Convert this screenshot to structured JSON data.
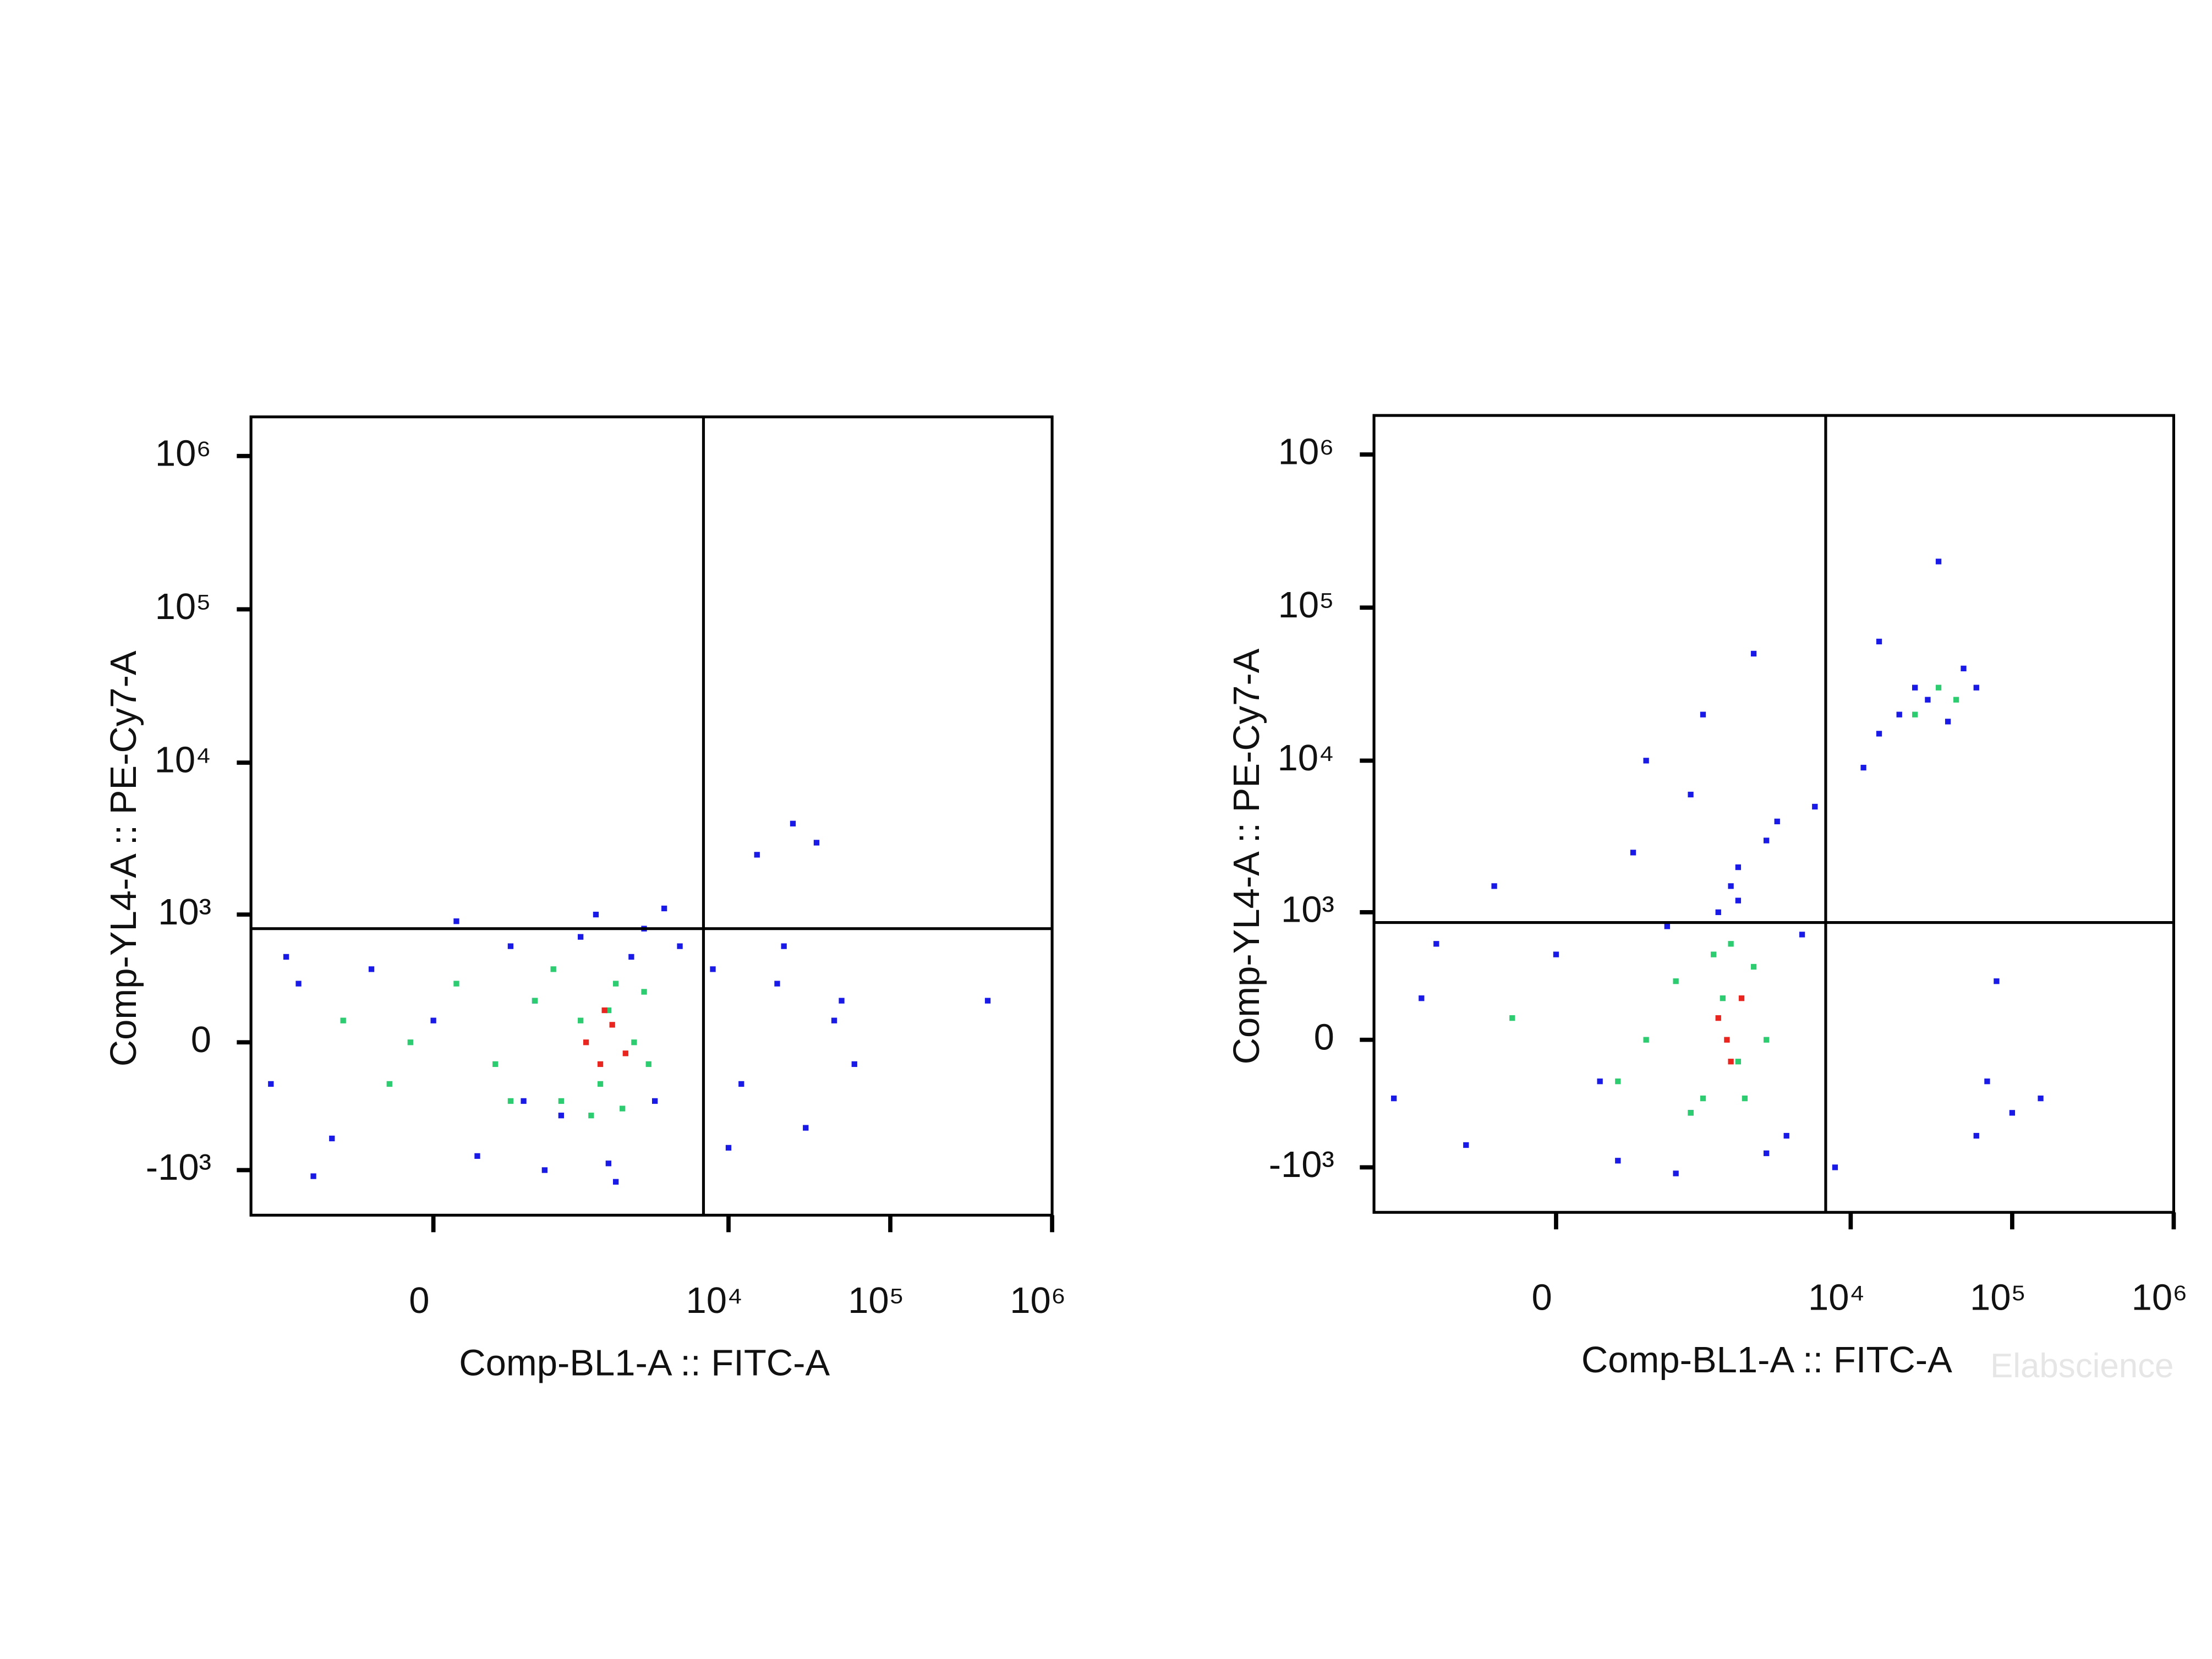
{
  "chart_data": [
    {
      "type": "scatter",
      "scale": "logicle",
      "xlabel": "Comp-BL1-A :: FITC-A",
      "ylabel": "Comp-YL4-A :: PE-Cy7-A",
      "xlim": [
        -2000,
        1000000
      ],
      "ylim": [
        -2000,
        1800000
      ],
      "xticks": [
        0,
        {
          "value": 10000,
          "label": "10⁴"
        },
        {
          "value": 100000,
          "label": "10⁵"
        },
        {
          "value": 1000000,
          "label": "10⁶"
        }
      ],
      "yticks": [
        {
          "value": -1000,
          "label": "-10³"
        },
        0,
        {
          "value": 1000,
          "label": "10³"
        },
        {
          "value": 10000,
          "label": "10⁴"
        },
        {
          "value": 100000,
          "label": "10⁵"
        },
        {
          "value": 1000000,
          "label": "10⁶"
        }
      ],
      "gate": {
        "x": 7000,
        "y": 800
      },
      "series": [
        {
          "color": "#1a1ae6",
          "x": [
            -1500,
            -1000,
            -600,
            -300,
            0,
            200,
            400,
            600,
            900,
            1200,
            1800,
            2500,
            3500,
            5000,
            8000,
            12000,
            20000,
            30000,
            45000,
            60000,
            -800,
            100,
            700,
            1500,
            3000,
            15000,
            25000,
            35000,
            400000,
            -1200,
            500,
            2000,
            4000,
            10000,
            22000,
            50000
          ],
          "values": [
            -200,
            300,
            -600,
            400,
            100,
            -800,
            600,
            200,
            -400,
            700,
            -900,
            500,
            -300,
            600,
            400,
            -200,
            300,
            -500,
            100,
            -100,
            -1100,
            900,
            -1000,
            1000,
            800,
            2500,
            4000,
            3000,
            200,
            500,
            -300,
            -1200,
            1100,
            -700,
            600,
            200
          ]
        },
        {
          "color": "#2ecc71",
          "x": [
            -500,
            -200,
            100,
            300,
            600,
            900,
            1200,
            1600,
            2000,
            2600,
            3200,
            800,
            1400,
            1800,
            -100,
            400,
            2200,
            3000
          ],
          "values": [
            100,
            -200,
            300,
            -100,
            200,
            -300,
            100,
            -200,
            300,
            0,
            -100,
            400,
            -400,
            150,
            0,
            -300,
            -350,
            250
          ]
        },
        {
          "color": "#e8251f",
          "x": [
            1300,
            1600,
            1900,
            2300,
            1700
          ],
          "values": [
            0,
            -100,
            80,
            -50,
            150
          ]
        }
      ]
    },
    {
      "type": "scatter",
      "scale": "logicle",
      "xlabel": "Comp-BL1-A :: FITC-A",
      "ylabel": "Comp-YL4-A :: PE-Cy7-A",
      "xlim": [
        -2000,
        1000000
      ],
      "ylim": [
        -2000,
        1800000
      ],
      "xticks": [
        0,
        {
          "value": 10000,
          "label": "10⁴"
        },
        {
          "value": 100000,
          "label": "10⁵"
        },
        {
          "value": 1000000,
          "label": "10⁶"
        }
      ],
      "yticks": [
        {
          "value": -1000,
          "label": "-10³"
        },
        0,
        {
          "value": 1000,
          "label": "10³"
        },
        {
          "value": 10000,
          "label": "10⁴"
        },
        {
          "value": 100000,
          "label": "10⁵"
        },
        {
          "value": 1000000,
          "label": "10⁶"
        }
      ],
      "gate": {
        "x": 7000,
        "y": 850
      },
      "watermark": "Elabscience",
      "series": [
        {
          "color": "#1a1ae6",
          "x": [
            -1500,
            -1000,
            -500,
            0,
            300,
            700,
            1000,
            1500,
            2000,
            3000,
            4000,
            6000,
            500,
            1200,
            2500,
            3500,
            800,
            1800,
            -800,
            200,
            12000,
            15000,
            20000,
            25000,
            30000,
            40000,
            50000,
            60000,
            15000,
            35000,
            70000,
            80000,
            100000,
            60000,
            3000,
            5000,
            2000,
            1000,
            400,
            -300,
            150000,
            8000
          ],
          "values": [
            -300,
            200,
            -700,
            500,
            -900,
            800,
            -400,
            1000,
            2000,
            3000,
            -600,
            5000,
            10000,
            20000,
            50000,
            4000,
            -1100,
            1500,
            600,
            -200,
            9000,
            15000,
            20000,
            30000,
            25000,
            18000,
            40000,
            30000,
            60000,
            200000,
            -200,
            300,
            -400,
            -600,
            -800,
            700,
            1200,
            6000,
            2500,
            1500,
            -300,
            -1000
          ]
        },
        {
          "color": "#2ecc71",
          "x": [
            -200,
            300,
            800,
            1200,
            1600,
            2000,
            2500,
            3000,
            1000,
            1400,
            25000,
            35000,
            45000,
            500,
            2200,
            1800
          ],
          "values": [
            100,
            -200,
            300,
            -300,
            200,
            -100,
            400,
            0,
            -400,
            500,
            20000,
            30000,
            25000,
            0,
            -300,
            600
          ]
        },
        {
          "color": "#e8251f",
          "x": [
            1500,
            1800,
            2100,
            1700
          ],
          "values": [
            100,
            -100,
            200,
            0
          ]
        }
      ]
    }
  ]
}
